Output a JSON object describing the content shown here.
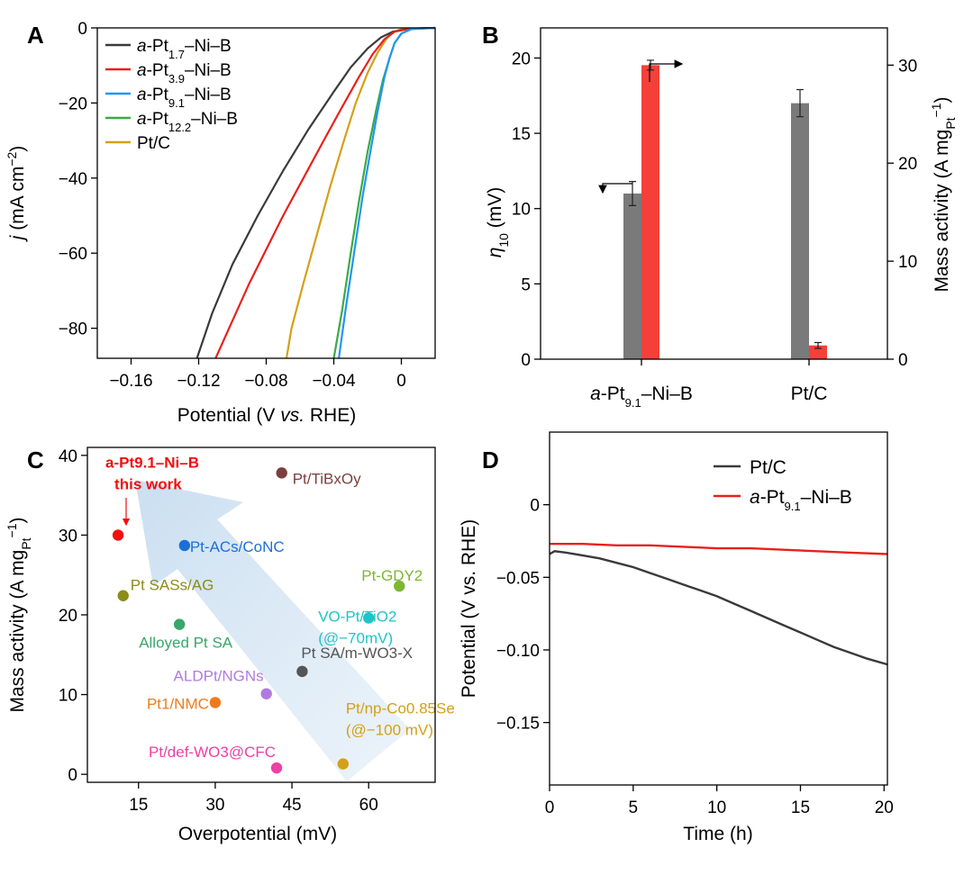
{
  "chart_data": [
    {
      "panel": "A",
      "type": "line",
      "xlabel": "Potential (V vs. RHE)",
      "ylabel": "j (mA cm−2)",
      "xlim": [
        -0.18,
        0.02
      ],
      "ylim": [
        -88,
        0
      ],
      "xticks": [
        -0.16,
        -0.12,
        -0.08,
        -0.04,
        0
      ],
      "xtick_labels": [
        "−0.16",
        "−0.12",
        "−0.08",
        "−0.04",
        "0"
      ],
      "yticks": [
        -80,
        -60,
        -40,
        -20,
        0
      ],
      "ytick_labels": [
        "−80",
        "−60",
        "−40",
        "−20",
        "0"
      ],
      "legend_position": "top-left",
      "series": [
        {
          "name": "a-Pt1.7–Ni–B",
          "label_parts": [
            "a",
            "-Pt",
            "1.7",
            "–Ni–B"
          ],
          "color": "#3a3a3a",
          "x": [
            -0.121,
            -0.112,
            -0.1,
            -0.085,
            -0.07,
            -0.055,
            -0.04,
            -0.03,
            -0.02,
            -0.012,
            -0.005,
            0.005,
            0.02
          ],
          "y": [
            -88,
            -76,
            -63,
            -50,
            -38,
            -27,
            -17,
            -10.5,
            -5.5,
            -2.5,
            -1,
            -0.2,
            0
          ]
        },
        {
          "name": "a-Pt3.9–Ni–B",
          "label_parts": [
            "a",
            "-Pt",
            "3.9",
            "–Ni–B"
          ],
          "color": "#e8211d",
          "x": [
            -0.11,
            -0.1,
            -0.09,
            -0.08,
            -0.07,
            -0.058,
            -0.046,
            -0.035,
            -0.025,
            -0.017,
            -0.01,
            -0.004,
            0.005,
            0.02
          ],
          "y": [
            -88,
            -78,
            -68,
            -59,
            -50,
            -40,
            -30,
            -21,
            -13,
            -7,
            -3,
            -1,
            -0.2,
            0
          ]
        },
        {
          "name": "a-Pt9.1–Ni–B",
          "label_parts": [
            "a",
            "-Pt",
            "9.1",
            "–Ni–B"
          ],
          "color": "#2196f3",
          "x": [
            -0.037,
            -0.033,
            -0.028,
            -0.023,
            -0.018,
            -0.014,
            -0.01,
            -0.007,
            -0.004,
            0.0,
            0.006,
            0.02
          ],
          "y": [
            -88,
            -75,
            -60,
            -45,
            -32,
            -22,
            -13,
            -8,
            -4,
            -1.5,
            -0.3,
            0
          ]
        },
        {
          "name": "a-Pt12.2–Ni–B",
          "label_parts": [
            "a",
            "-Pt",
            "12.2",
            "–Ni–B"
          ],
          "color": "#3aab46",
          "x": [
            -0.04,
            -0.035,
            -0.03,
            -0.025,
            -0.02,
            -0.015,
            -0.011,
            -0.007,
            -0.004,
            0.0,
            0.006,
            0.02
          ],
          "y": [
            -88,
            -75,
            -60,
            -46,
            -33,
            -22,
            -14,
            -8,
            -4,
            -1.5,
            -0.3,
            0
          ]
        },
        {
          "name": "Pt/C",
          "label_parts": [
            "",
            "Pt/C",
            "",
            ""
          ],
          "color": "#d4a017",
          "x": [
            -0.068,
            -0.065,
            -0.058,
            -0.05,
            -0.042,
            -0.034,
            -0.027,
            -0.02,
            -0.014,
            -0.009,
            -0.005,
            0.0,
            0.02
          ],
          "y": [
            -88,
            -80,
            -68,
            -55,
            -42,
            -30,
            -20,
            -12,
            -6.5,
            -3,
            -1.2,
            -0.3,
            0
          ]
        }
      ]
    },
    {
      "panel": "B",
      "type": "bar",
      "categories": [
        "a-Pt9.1–Ni–B",
        "Pt/C"
      ],
      "category_parts": [
        [
          "a",
          "-Pt",
          "9.1",
          "–Ni–B"
        ],
        [
          "",
          "Pt/C",
          "",
          ""
        ]
      ],
      "ylabel": "η10 (mV)",
      "ylabel_right": "Mass activity (A mgPt−1)",
      "ylim": [
        0,
        22
      ],
      "ylim_right": [
        0,
        33.8
      ],
      "yticks": [
        0,
        5,
        10,
        15,
        20
      ],
      "yticks_right": [
        0,
        10,
        20,
        30
      ],
      "series": [
        {
          "name": "η10",
          "axis": "left",
          "color": "#7a7a7a",
          "values": [
            11.0,
            17.0
          ],
          "errors": [
            0.8,
            0.9
          ]
        },
        {
          "name": "Mass activity",
          "axis": "right",
          "color": "#f5403a",
          "values": [
            30.0,
            1.4
          ],
          "errors": [
            0.5,
            0.3
          ]
        }
      ]
    },
    {
      "panel": "C",
      "type": "scatter",
      "xlabel": "Overpotential (mV)",
      "ylabel": "Mass activity (A mgPt−1)",
      "xlim": [
        5,
        73
      ],
      "ylim": [
        -1,
        41
      ],
      "xticks": [
        15,
        30,
        45,
        60
      ],
      "yticks": [
        0,
        10,
        20,
        30,
        40
      ],
      "points": [
        {
          "x": 11,
          "y": 30.0,
          "label_lines": [
            "a-Pt9.1–Ni–B",
            "this work"
          ],
          "color": "#f01010",
          "highlight": true
        },
        {
          "x": 43,
          "y": 37.8,
          "label_lines": [
            "Pt/TiBxOy"
          ],
          "color": "#7b3f3f"
        },
        {
          "x": 24,
          "y": 28.7,
          "label_lines": [
            "Pt-ACs/CoNC"
          ],
          "color": "#1c6fd6"
        },
        {
          "x": 12,
          "y": 22.4,
          "label_lines": [
            "Pt SASs/AG"
          ],
          "color": "#8c8c1a"
        },
        {
          "x": 66,
          "y": 23.6,
          "label_lines": [
            "Pt-GDY2"
          ],
          "color": "#7cb82f"
        },
        {
          "x": 60,
          "y": 19.6,
          "label_lines": [
            "VO-Pt/TiO2",
            "(@−70mV)"
          ],
          "color": "#1fc4c8"
        },
        {
          "x": 23,
          "y": 18.8,
          "label_lines": [
            "Alloyed Pt SA"
          ],
          "color": "#3aa66a"
        },
        {
          "x": 47,
          "y": 12.9,
          "label_lines": [
            "Pt SA/m-WO3-X"
          ],
          "color": "#555555"
        },
        {
          "x": 40,
          "y": 10.1,
          "label_lines": [
            "ALDPt/NGNs"
          ],
          "color": "#b07be0"
        },
        {
          "x": 30,
          "y": 9.0,
          "label_lines": [
            "Pt1/NMC"
          ],
          "color": "#ef7a1a"
        },
        {
          "x": 55,
          "y": 1.3,
          "label_lines": [
            "Pt/np-Co0.85Se",
            "(@−100 mV)"
          ],
          "color": "#d4a017"
        },
        {
          "x": 42,
          "y": 0.8,
          "label_lines": [
            "Pt/def-WO3@CFC"
          ],
          "color": "#ee3fa6"
        }
      ]
    },
    {
      "panel": "D",
      "type": "line",
      "xlabel": "Time (h)",
      "ylabel": "Potential (V vs. RHE)",
      "xlim": [
        0,
        20.2
      ],
      "ylim": [
        -0.193,
        0.05
      ],
      "xticks": [
        0,
        5,
        10,
        15,
        20
      ],
      "yticks": [
        0,
        -0.05,
        -0.1,
        -0.15
      ],
      "ytick_labels": [
        "0",
        "−0.05",
        "−0.10",
        "−0.15"
      ],
      "legend_position": "top-right",
      "series": [
        {
          "name": "Pt/C",
          "label_parts": [
            "",
            "Pt/C",
            "",
            ""
          ],
          "color": "#3a3a3a",
          "x": [
            0,
            0.3,
            1,
            2,
            3,
            4,
            5,
            6,
            7,
            8,
            9,
            10,
            11,
            12,
            13,
            14,
            15,
            16,
            17,
            18,
            19,
            20.2
          ],
          "y": [
            -0.034,
            -0.032,
            -0.033,
            -0.035,
            -0.037,
            -0.04,
            -0.043,
            -0.047,
            -0.051,
            -0.055,
            -0.059,
            -0.063,
            -0.068,
            -0.073,
            -0.078,
            -0.083,
            -0.088,
            -0.093,
            -0.098,
            -0.102,
            -0.106,
            -0.11
          ]
        },
        {
          "name": "a-Pt9.1–Ni–B",
          "label_parts": [
            "a",
            "-Pt",
            "9.1",
            "–Ni–B"
          ],
          "color": "#e8211d",
          "x": [
            0,
            2,
            4,
            6,
            8,
            10,
            12,
            14,
            16,
            18,
            20.2
          ],
          "y": [
            -0.027,
            -0.027,
            -0.028,
            -0.028,
            -0.029,
            -0.03,
            -0.03,
            -0.031,
            -0.032,
            -0.033,
            -0.034
          ]
        }
      ]
    }
  ],
  "panel_labels": [
    "A",
    "B",
    "C",
    "D"
  ],
  "text": {
    "a_xlabel_pre": "Potential (V ",
    "a_xlabel_vs": "vs.",
    "a_xlabel_post": " RHE)",
    "a_ylabel_j": "j",
    "a_ylabel_main": " (mA cm",
    "a_ylabel_sup": "−2",
    "a_ylabel_end": ")",
    "b_ylabel_eta": "η",
    "b_ylabel_sub": "10",
    "b_ylabel_unit": " (mV)",
    "b_ylabel_right_main": "Mass activity (A mg",
    "b_ylabel_right_sub": "Pt",
    "b_ylabel_right_sup": "−1",
    "b_ylabel_right_end": ")",
    "c_xlabel": "Overpotential (mV)",
    "c_ylabel_main": "Mass activity (A mg",
    "c_ylabel_sub": "Pt",
    "c_ylabel_sup": "−1",
    "c_ylabel_end": ")",
    "d_xlabel": "Time (h)",
    "d_ylabel": "Potential (V vs. RHE)"
  }
}
